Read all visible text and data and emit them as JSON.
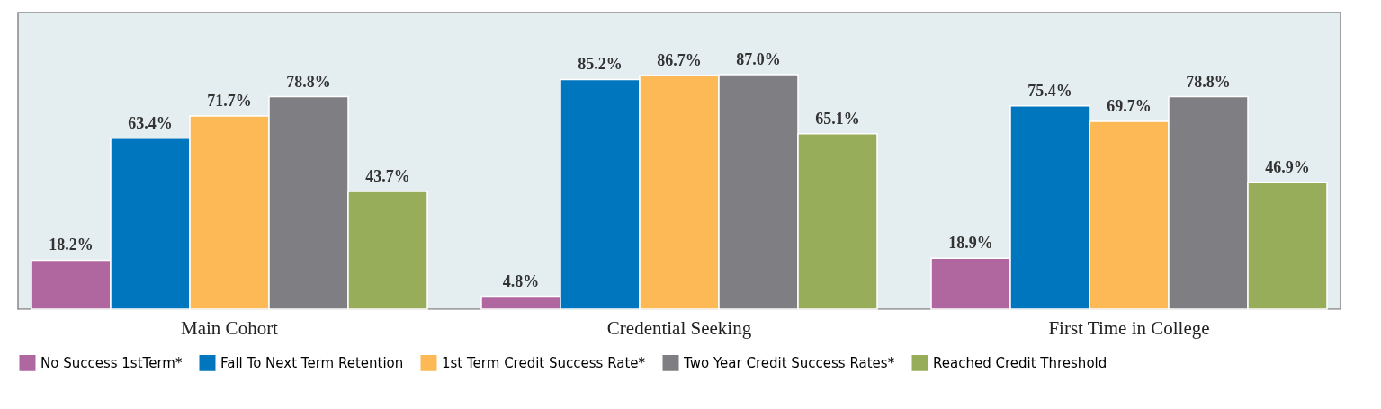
{
  "chart_data": {
    "type": "bar",
    "categories": [
      "Main Cohort",
      "Credential Seeking",
      "First Time in College"
    ],
    "ylim": [
      0,
      110
    ],
    "legend": "bottom",
    "grid": false,
    "tick_labels": "x",
    "series": [
      {
        "name": "No Success 1stTerm*",
        "color": "#b0679f",
        "values": [
          18.2,
          4.8,
          18.9
        ],
        "value_labels": [
          "18.2%",
          "4.8%",
          "18.9%"
        ]
      },
      {
        "name": "Fall To Next Term Retention",
        "color": "#0076bf",
        "values": [
          63.4,
          85.2,
          75.4
        ],
        "value_labels": [
          "63.4%",
          "85.2%",
          "75.4%"
        ]
      },
      {
        "name": "1st Term Credit Success Rate*",
        "color": "#fdb955",
        "values": [
          71.7,
          86.7,
          69.7
        ],
        "value_labels": [
          "71.7%",
          "86.7%",
          "69.7%"
        ]
      },
      {
        "name": "Two Year Credit Success Rates*",
        "color": "#7f7e82",
        "values": [
          78.8,
          87.0,
          78.8
        ],
        "value_labels": [
          "78.8%",
          "87.0%",
          "78.8%"
        ]
      },
      {
        "name": "Reached Credit Threshold",
        "color": "#97ad5a",
        "values": [
          43.7,
          65.1,
          46.9
        ],
        "value_labels": [
          "43.7%",
          "65.1%",
          "46.9%"
        ]
      }
    ]
  }
}
